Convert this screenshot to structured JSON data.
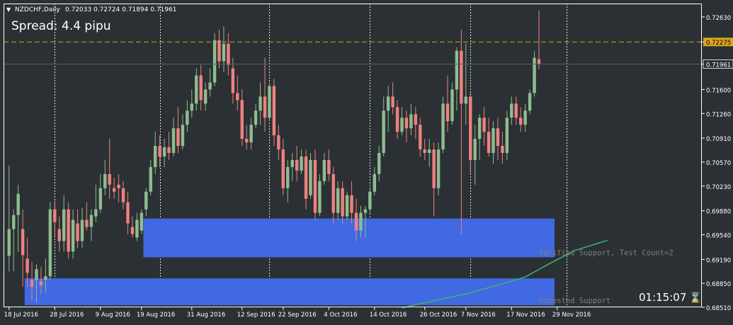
{
  "header": {
    "arrow": "▼",
    "symbol": "NZDCHF,Daily",
    "ohlc": "0.72033 0.72724 0.71894 0.71961"
  },
  "spread_text": "Spread: 4.4 pipu",
  "countdown": "01:15:07",
  "hourglass_icon": "⌛",
  "zones": [
    {
      "label": "Verified Support, Test Count=2",
      "top": 0.6977,
      "bottom": 0.6922,
      "from": "19 Aug 2016",
      "to": "end",
      "color": "#4169e1"
    },
    {
      "label": "Untested Support",
      "top": 0.6892,
      "bottom": 0.6854,
      "from": "14 Jul 2016",
      "to": "end",
      "color": "#4169e1"
    }
  ],
  "colors": {
    "background": "#2b3034",
    "bull": "#8fbc8f",
    "bear": "#f08080",
    "grid_line": "#ffffff",
    "ask_line": "#daa520",
    "zone_text": "#7f7f7f",
    "ma": "#3cb371"
  },
  "chart_data": {
    "type": "candlestick",
    "symbol": "NZDCHF",
    "timeframe": "Daily",
    "ylim": [
      0.6851,
      0.7282
    ],
    "y_ticks": [
      "0.72630",
      "0.72275",
      "0.71961",
      "0.71600",
      "0.71260",
      "0.70910",
      "0.70570",
      "0.70230",
      "0.69880",
      "0.69540",
      "0.69190",
      "0.68850",
      "0.68510"
    ],
    "x_ticks": [
      "18 Jul 2016",
      "28 Jul 2016",
      "9 Aug 2016",
      "19 Aug 2016",
      "31 Aug 2016",
      "12 Sep 2016",
      "22 Sep 2016",
      "4 Oct 2016",
      "14 Oct 2016",
      "26 Oct 2016",
      "7 Nov 2016",
      "17 Nov 2016",
      "29 Nov 2016"
    ],
    "ask_price": "0.72275",
    "bid_price": "0.71961",
    "period_separators": [
      "1 Aug 2016",
      "1 Sep 2016",
      "3 Oct 2016",
      "1 Nov 2016",
      "1 Dec 2016"
    ],
    "candles": [
      {
        "o": 0.6924,
        "h": 0.7052,
        "l": 0.6902,
        "c": 0.6962
      },
      {
        "o": 0.6962,
        "h": 0.699,
        "l": 0.6902,
        "c": 0.6982
      },
      {
        "o": 0.6982,
        "h": 0.7025,
        "l": 0.693,
        "c": 0.7012
      },
      {
        "o": 0.6962,
        "h": 0.699,
        "l": 0.688,
        "c": 0.6925
      },
      {
        "o": 0.692,
        "h": 0.695,
        "l": 0.688,
        "c": 0.69
      },
      {
        "o": 0.689,
        "h": 0.6915,
        "l": 0.686,
        "c": 0.688
      },
      {
        "o": 0.689,
        "h": 0.6912,
        "l": 0.6858,
        "c": 0.6905
      },
      {
        "o": 0.6888,
        "h": 0.6908,
        "l": 0.687,
        "c": 0.6882
      },
      {
        "o": 0.689,
        "h": 0.692,
        "l": 0.6872,
        "c": 0.6895
      },
      {
        "o": 0.6895,
        "h": 0.7,
        "l": 0.689,
        "c": 0.699
      },
      {
        "o": 0.699,
        "h": 0.7002,
        "l": 0.695,
        "c": 0.6972
      },
      {
        "o": 0.6962,
        "h": 0.698,
        "l": 0.693,
        "c": 0.6945
      },
      {
        "o": 0.6945,
        "h": 0.701,
        "l": 0.693,
        "c": 0.699
      },
      {
        "o": 0.699,
        "h": 0.7,
        "l": 0.692,
        "c": 0.693
      },
      {
        "o": 0.693,
        "h": 0.699,
        "l": 0.692,
        "c": 0.6975
      },
      {
        "o": 0.697,
        "h": 0.699,
        "l": 0.6935,
        "c": 0.6945
      },
      {
        "o": 0.6945,
        "h": 0.6992,
        "l": 0.6935,
        "c": 0.6975
      },
      {
        "o": 0.6975,
        "h": 0.7,
        "l": 0.696,
        "c": 0.6965
      },
      {
        "o": 0.6965,
        "h": 0.699,
        "l": 0.6945,
        "c": 0.6982
      },
      {
        "o": 0.698,
        "h": 0.7025,
        "l": 0.6972,
        "c": 0.699
      },
      {
        "o": 0.699,
        "h": 0.704,
        "l": 0.6985,
        "c": 0.702
      },
      {
        "o": 0.702,
        "h": 0.706,
        "l": 0.701,
        "c": 0.704
      },
      {
        "o": 0.704,
        "h": 0.709,
        "l": 0.7005,
        "c": 0.7025
      },
      {
        "o": 0.702,
        "h": 0.7035,
        "l": 0.7005,
        "c": 0.7015
      },
      {
        "o": 0.7025,
        "h": 0.704,
        "l": 0.7,
        "c": 0.702
      },
      {
        "o": 0.702,
        "h": 0.703,
        "l": 0.699,
        "c": 0.7
      },
      {
        "o": 0.7,
        "h": 0.7015,
        "l": 0.6955,
        "c": 0.697
      },
      {
        "o": 0.6965,
        "h": 0.698,
        "l": 0.695,
        "c": 0.6955
      },
      {
        "o": 0.695,
        "h": 0.6985,
        "l": 0.6945,
        "c": 0.6975
      },
      {
        "o": 0.696,
        "h": 0.699,
        "l": 0.6955,
        "c": 0.6985
      },
      {
        "o": 0.699,
        "h": 0.702,
        "l": 0.698,
        "c": 0.7015
      },
      {
        "o": 0.7015,
        "h": 0.706,
        "l": 0.701,
        "c": 0.705
      },
      {
        "o": 0.705,
        "h": 0.71,
        "l": 0.704,
        "c": 0.708
      },
      {
        "o": 0.708,
        "h": 0.7095,
        "l": 0.705,
        "c": 0.7065
      },
      {
        "o": 0.7065,
        "h": 0.709,
        "l": 0.705,
        "c": 0.7078
      },
      {
        "o": 0.7078,
        "h": 0.71,
        "l": 0.706,
        "c": 0.707
      },
      {
        "o": 0.707,
        "h": 0.712,
        "l": 0.7065,
        "c": 0.7105
      },
      {
        "o": 0.7105,
        "h": 0.7135,
        "l": 0.707,
        "c": 0.708
      },
      {
        "o": 0.708,
        "h": 0.7125,
        "l": 0.7075,
        "c": 0.711
      },
      {
        "o": 0.711,
        "h": 0.7145,
        "l": 0.71,
        "c": 0.713
      },
      {
        "o": 0.713,
        "h": 0.716,
        "l": 0.712,
        "c": 0.714
      },
      {
        "o": 0.714,
        "h": 0.719,
        "l": 0.713,
        "c": 0.718
      },
      {
        "o": 0.718,
        "h": 0.7195,
        "l": 0.713,
        "c": 0.7145
      },
      {
        "o": 0.714,
        "h": 0.717,
        "l": 0.713,
        "c": 0.716
      },
      {
        "o": 0.716,
        "h": 0.719,
        "l": 0.715,
        "c": 0.717
      },
      {
        "o": 0.717,
        "h": 0.724,
        "l": 0.7165,
        "c": 0.723
      },
      {
        "o": 0.723,
        "h": 0.7245,
        "l": 0.719,
        "c": 0.72
      },
      {
        "o": 0.72,
        "h": 0.725,
        "l": 0.7185,
        "c": 0.7225
      },
      {
        "o": 0.7225,
        "h": 0.724,
        "l": 0.718,
        "c": 0.7195
      },
      {
        "o": 0.719,
        "h": 0.7205,
        "l": 0.714,
        "c": 0.7155
      },
      {
        "o": 0.7155,
        "h": 0.718,
        "l": 0.713,
        "c": 0.7145
      },
      {
        "o": 0.7145,
        "h": 0.716,
        "l": 0.708,
        "c": 0.709
      },
      {
        "o": 0.709,
        "h": 0.711,
        "l": 0.7075,
        "c": 0.7085
      },
      {
        "o": 0.7085,
        "h": 0.712,
        "l": 0.7075,
        "c": 0.711
      },
      {
        "o": 0.711,
        "h": 0.714,
        "l": 0.7105,
        "c": 0.713
      },
      {
        "o": 0.713,
        "h": 0.717,
        "l": 0.711,
        "c": 0.715
      },
      {
        "o": 0.715,
        "h": 0.7205,
        "l": 0.71,
        "c": 0.712
      },
      {
        "o": 0.712,
        "h": 0.717,
        "l": 0.7115,
        "c": 0.7165
      },
      {
        "o": 0.7165,
        "h": 0.7175,
        "l": 0.708,
        "c": 0.7095
      },
      {
        "o": 0.7095,
        "h": 0.711,
        "l": 0.706,
        "c": 0.7075
      },
      {
        "o": 0.7075,
        "h": 0.709,
        "l": 0.701,
        "c": 0.702
      },
      {
        "o": 0.702,
        "h": 0.706,
        "l": 0.7,
        "c": 0.705
      },
      {
        "o": 0.705,
        "h": 0.707,
        "l": 0.703,
        "c": 0.706
      },
      {
        "o": 0.706,
        "h": 0.708,
        "l": 0.703,
        "c": 0.7045
      },
      {
        "o": 0.7045,
        "h": 0.7075,
        "l": 0.704,
        "c": 0.7065
      },
      {
        "o": 0.7065,
        "h": 0.7075,
        "l": 0.699,
        "c": 0.7005
      },
      {
        "o": 0.701,
        "h": 0.707,
        "l": 0.7005,
        "c": 0.706
      },
      {
        "o": 0.706,
        "h": 0.7075,
        "l": 0.6975,
        "c": 0.6985
      },
      {
        "o": 0.6985,
        "h": 0.704,
        "l": 0.698,
        "c": 0.703
      },
      {
        "o": 0.703,
        "h": 0.707,
        "l": 0.7025,
        "c": 0.706
      },
      {
        "o": 0.706,
        "h": 0.7075,
        "l": 0.703,
        "c": 0.704
      },
      {
        "o": 0.704,
        "h": 0.705,
        "l": 0.697,
        "c": 0.6985
      },
      {
        "o": 0.6985,
        "h": 0.703,
        "l": 0.6975,
        "c": 0.702
      },
      {
        "o": 0.702,
        "h": 0.703,
        "l": 0.697,
        "c": 0.698
      },
      {
        "o": 0.698,
        "h": 0.7015,
        "l": 0.6975,
        "c": 0.701
      },
      {
        "o": 0.701,
        "h": 0.703,
        "l": 0.697,
        "c": 0.6985
      },
      {
        "o": 0.6985,
        "h": 0.7005,
        "l": 0.6945,
        "c": 0.696
      },
      {
        "o": 0.696,
        "h": 0.6995,
        "l": 0.695,
        "c": 0.6985
      },
      {
        "o": 0.6985,
        "h": 0.6995,
        "l": 0.695,
        "c": 0.699
      },
      {
        "o": 0.699,
        "h": 0.702,
        "l": 0.6985,
        "c": 0.7015
      },
      {
        "o": 0.7015,
        "h": 0.705,
        "l": 0.701,
        "c": 0.704
      },
      {
        "o": 0.704,
        "h": 0.708,
        "l": 0.703,
        "c": 0.707
      },
      {
        "o": 0.707,
        "h": 0.715,
        "l": 0.7065,
        "c": 0.713
      },
      {
        "o": 0.713,
        "h": 0.7165,
        "l": 0.71,
        "c": 0.715
      },
      {
        "o": 0.715,
        "h": 0.717,
        "l": 0.7125,
        "c": 0.7135
      },
      {
        "o": 0.7135,
        "h": 0.7145,
        "l": 0.709,
        "c": 0.71
      },
      {
        "o": 0.71,
        "h": 0.7135,
        "l": 0.7095,
        "c": 0.712
      },
      {
        "o": 0.712,
        "h": 0.713,
        "l": 0.7085,
        "c": 0.7105
      },
      {
        "o": 0.7105,
        "h": 0.714,
        "l": 0.7095,
        "c": 0.7125
      },
      {
        "o": 0.7125,
        "h": 0.7135,
        "l": 0.709,
        "c": 0.711
      },
      {
        "o": 0.711,
        "h": 0.712,
        "l": 0.7065,
        "c": 0.7075
      },
      {
        "o": 0.7075,
        "h": 0.709,
        "l": 0.706,
        "c": 0.707
      },
      {
        "o": 0.707,
        "h": 0.709,
        "l": 0.705,
        "c": 0.7075
      },
      {
        "o": 0.7075,
        "h": 0.7085,
        "l": 0.698,
        "c": 0.702
      },
      {
        "o": 0.702,
        "h": 0.7085,
        "l": 0.701,
        "c": 0.7075
      },
      {
        "o": 0.7075,
        "h": 0.715,
        "l": 0.707,
        "c": 0.714
      },
      {
        "o": 0.714,
        "h": 0.718,
        "l": 0.71,
        "c": 0.7115
      },
      {
        "o": 0.7115,
        "h": 0.717,
        "l": 0.711,
        "c": 0.716
      },
      {
        "o": 0.716,
        "h": 0.722,
        "l": 0.713,
        "c": 0.7215
      },
      {
        "o": 0.7215,
        "h": 0.7245,
        "l": 0.6955,
        "c": 0.714
      },
      {
        "o": 0.714,
        "h": 0.7225,
        "l": 0.711,
        "c": 0.715
      },
      {
        "o": 0.715,
        "h": 0.7155,
        "l": 0.704,
        "c": 0.706
      },
      {
        "o": 0.706,
        "h": 0.711,
        "l": 0.7025,
        "c": 0.709
      },
      {
        "o": 0.709,
        "h": 0.7125,
        "l": 0.706,
        "c": 0.712
      },
      {
        "o": 0.712,
        "h": 0.7135,
        "l": 0.708,
        "c": 0.71
      },
      {
        "o": 0.71,
        "h": 0.712,
        "l": 0.7065,
        "c": 0.707
      },
      {
        "o": 0.707,
        "h": 0.7115,
        "l": 0.7055,
        "c": 0.7105
      },
      {
        "o": 0.7105,
        "h": 0.712,
        "l": 0.706,
        "c": 0.708
      },
      {
        "o": 0.708,
        "h": 0.71,
        "l": 0.7055,
        "c": 0.707
      },
      {
        "o": 0.707,
        "h": 0.713,
        "l": 0.706,
        "c": 0.712
      },
      {
        "o": 0.712,
        "h": 0.715,
        "l": 0.711,
        "c": 0.714
      },
      {
        "o": 0.714,
        "h": 0.715,
        "l": 0.711,
        "c": 0.712
      },
      {
        "o": 0.712,
        "h": 0.7135,
        "l": 0.71,
        "c": 0.711
      },
      {
        "o": 0.711,
        "h": 0.714,
        "l": 0.71,
        "c": 0.713
      },
      {
        "o": 0.713,
        "h": 0.716,
        "l": 0.7125,
        "c": 0.7155
      },
      {
        "o": 0.7155,
        "h": 0.7215,
        "l": 0.715,
        "c": 0.7205
      },
      {
        "o": 0.7203,
        "h": 0.7272,
        "l": 0.7189,
        "c": 0.7196
      }
    ],
    "moving_average": [
      [
        86,
        0.685
      ],
      [
        90,
        0.6856
      ],
      [
        100,
        0.687
      ],
      [
        110,
        0.6888
      ],
      [
        113,
        0.6894
      ],
      [
        118,
        0.6912
      ],
      [
        124,
        0.6932
      ],
      [
        131,
        0.6946
      ]
    ]
  }
}
